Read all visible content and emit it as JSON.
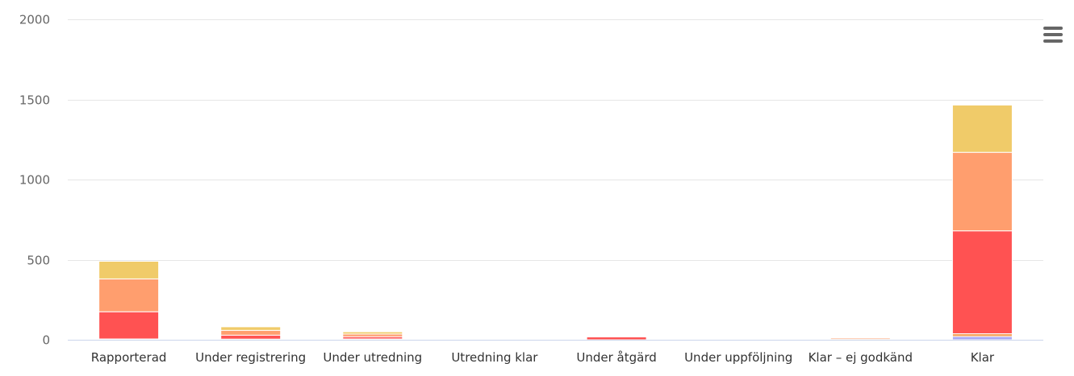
{
  "chart_data": {
    "type": "bar",
    "stacked": true,
    "categories": [
      "Rapporterad",
      "Under registrering",
      "Under utredning",
      "Utredning klar",
      "Under åtgärd",
      "Under uppföljning",
      "Klar – ej godkänd",
      "Klar"
    ],
    "ylim": [
      0,
      2000
    ],
    "yticks": [
      0,
      500,
      1000,
      1500,
      2000
    ],
    "grid": true,
    "legend": "none",
    "series": [
      {
        "color": "#a9a9f5",
        "values": [
          2,
          2,
          2,
          0,
          0,
          0,
          0,
          20
        ]
      },
      {
        "color": "#f7a35c",
        "values": [
          3,
          2,
          3,
          0,
          0,
          0,
          0,
          18
        ]
      },
      {
        "color": "#ff5252",
        "values": [
          170,
          25,
          14,
          1,
          18,
          0,
          2,
          642
        ]
      },
      {
        "color": "#ff9e6e",
        "values": [
          205,
          30,
          17,
          1,
          2,
          0,
          8,
          490
        ]
      },
      {
        "color": "#f0cb69",
        "values": [
          110,
          22,
          14,
          1,
          1,
          0,
          3,
          295
        ]
      }
    ]
  },
  "menu": {
    "icon": "hamburger-menu-icon"
  }
}
